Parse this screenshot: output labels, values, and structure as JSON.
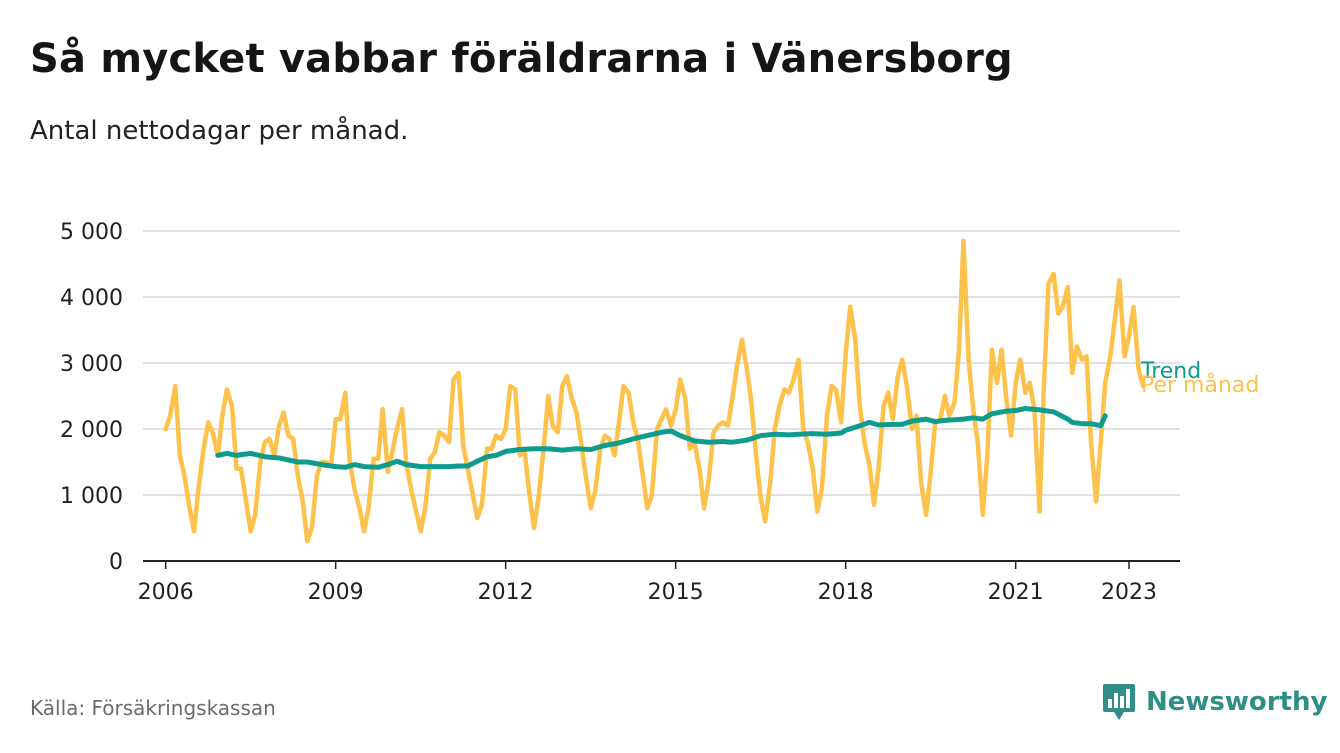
{
  "title": "Så mycket vabbar föräldrarna i Vänersborg",
  "subtitle": "Antal nettodagar per månad.",
  "source": "Källa: Försäkringskassan",
  "brand": {
    "name": "Newsworthy",
    "icon": "bar-chart-badge-icon",
    "color": "#2f8f87"
  },
  "chart_data": {
    "type": "line",
    "ylim": [
      0,
      5000
    ],
    "xlim": [
      2005.6,
      2023.9
    ],
    "y_ticks": [
      {
        "value": 0,
        "label": "0"
      },
      {
        "value": 1000,
        "label": "1 000"
      },
      {
        "value": 2000,
        "label": "2 000"
      },
      {
        "value": 3000,
        "label": "3 000"
      },
      {
        "value": 4000,
        "label": "4 000"
      },
      {
        "value": 5000,
        "label": "5 000"
      }
    ],
    "x_ticks": [
      {
        "value": 2006,
        "label": "2006"
      },
      {
        "value": 2009,
        "label": "2009"
      },
      {
        "value": 2012,
        "label": "2012"
      },
      {
        "value": 2015,
        "label": "2015"
      },
      {
        "value": 2018,
        "label": "2018"
      },
      {
        "value": 2021,
        "label": "2021"
      },
      {
        "value": 2023,
        "label": "2023"
      }
    ],
    "grid": true,
    "series": [
      {
        "name": "Per månad",
        "color": "#fcc24c",
        "points": [
          [
            2006.0,
            2000
          ],
          [
            2006.08,
            2200
          ],
          [
            2006.17,
            2650
          ],
          [
            2006.25,
            1600
          ],
          [
            2006.33,
            1300
          ],
          [
            2006.42,
            800
          ],
          [
            2006.5,
            450
          ],
          [
            2006.58,
            1100
          ],
          [
            2006.67,
            1700
          ],
          [
            2006.75,
            2100
          ],
          [
            2006.83,
            1950
          ],
          [
            2006.92,
            1600
          ],
          [
            2007.0,
            2200
          ],
          [
            2007.08,
            2600
          ],
          [
            2007.17,
            2350
          ],
          [
            2007.25,
            1400
          ],
          [
            2007.33,
            1400
          ],
          [
            2007.42,
            900
          ],
          [
            2007.5,
            450
          ],
          [
            2007.58,
            700
          ],
          [
            2007.67,
            1500
          ],
          [
            2007.75,
            1800
          ],
          [
            2007.83,
            1850
          ],
          [
            2007.92,
            1600
          ],
          [
            2008.0,
            2050
          ],
          [
            2008.08,
            2250
          ],
          [
            2008.17,
            1900
          ],
          [
            2008.25,
            1850
          ],
          [
            2008.33,
            1300
          ],
          [
            2008.42,
            900
          ],
          [
            2008.5,
            300
          ],
          [
            2008.58,
            500
          ],
          [
            2008.67,
            1300
          ],
          [
            2008.75,
            1500
          ],
          [
            2008.83,
            1500
          ],
          [
            2008.92,
            1450
          ],
          [
            2009.0,
            2150
          ],
          [
            2009.08,
            2150
          ],
          [
            2009.17,
            2550
          ],
          [
            2009.25,
            1500
          ],
          [
            2009.33,
            1100
          ],
          [
            2009.42,
            800
          ],
          [
            2009.5,
            450
          ],
          [
            2009.58,
            800
          ],
          [
            2009.67,
            1550
          ],
          [
            2009.75,
            1550
          ],
          [
            2009.83,
            2300
          ],
          [
            2009.92,
            1350
          ],
          [
            2010.0,
            1650
          ],
          [
            2010.08,
            2000
          ],
          [
            2010.17,
            2300
          ],
          [
            2010.25,
            1450
          ],
          [
            2010.33,
            1100
          ],
          [
            2010.42,
            750
          ],
          [
            2010.5,
            450
          ],
          [
            2010.58,
            800
          ],
          [
            2010.67,
            1550
          ],
          [
            2010.75,
            1650
          ],
          [
            2010.83,
            1950
          ],
          [
            2010.92,
            1900
          ],
          [
            2011.0,
            1800
          ],
          [
            2011.08,
            2750
          ],
          [
            2011.17,
            2850
          ],
          [
            2011.25,
            1750
          ],
          [
            2011.33,
            1400
          ],
          [
            2011.42,
            1000
          ],
          [
            2011.5,
            650
          ],
          [
            2011.58,
            850
          ],
          [
            2011.67,
            1700
          ],
          [
            2011.75,
            1700
          ],
          [
            2011.83,
            1900
          ],
          [
            2011.92,
            1850
          ],
          [
            2012.0,
            2000
          ],
          [
            2012.08,
            2650
          ],
          [
            2012.17,
            2600
          ],
          [
            2012.25,
            1600
          ],
          [
            2012.33,
            1700
          ],
          [
            2012.42,
            1000
          ],
          [
            2012.5,
            500
          ],
          [
            2012.58,
            950
          ],
          [
            2012.67,
            1700
          ],
          [
            2012.75,
            2500
          ],
          [
            2012.83,
            2050
          ],
          [
            2012.92,
            1950
          ],
          [
            2013.0,
            2650
          ],
          [
            2013.08,
            2800
          ],
          [
            2013.17,
            2450
          ],
          [
            2013.25,
            2250
          ],
          [
            2013.33,
            1800
          ],
          [
            2013.42,
            1250
          ],
          [
            2013.5,
            800
          ],
          [
            2013.58,
            1050
          ],
          [
            2013.67,
            1700
          ],
          [
            2013.75,
            1900
          ],
          [
            2013.83,
            1850
          ],
          [
            2013.92,
            1600
          ],
          [
            2014.0,
            2100
          ],
          [
            2014.08,
            2650
          ],
          [
            2014.17,
            2550
          ],
          [
            2014.25,
            2100
          ],
          [
            2014.33,
            1850
          ],
          [
            2014.42,
            1300
          ],
          [
            2014.5,
            800
          ],
          [
            2014.58,
            1000
          ],
          [
            2014.67,
            2000
          ],
          [
            2014.75,
            2150
          ],
          [
            2014.83,
            2300
          ],
          [
            2014.92,
            2050
          ],
          [
            2015.0,
            2300
          ],
          [
            2015.08,
            2750
          ],
          [
            2015.17,
            2450
          ],
          [
            2015.25,
            1700
          ],
          [
            2015.33,
            1800
          ],
          [
            2015.42,
            1400
          ],
          [
            2015.5,
            800
          ],
          [
            2015.58,
            1200
          ],
          [
            2015.67,
            1950
          ],
          [
            2015.75,
            2050
          ],
          [
            2015.83,
            2100
          ],
          [
            2015.92,
            2050
          ],
          [
            2016.0,
            2450
          ],
          [
            2016.08,
            2950
          ],
          [
            2016.17,
            3350
          ],
          [
            2016.25,
            2950
          ],
          [
            2016.33,
            2450
          ],
          [
            2016.42,
            1600
          ],
          [
            2016.5,
            950
          ],
          [
            2016.58,
            600
          ],
          [
            2016.67,
            1200
          ],
          [
            2016.75,
            2000
          ],
          [
            2016.83,
            2350
          ],
          [
            2016.92,
            2600
          ],
          [
            2017.0,
            2550
          ],
          [
            2017.08,
            2750
          ],
          [
            2017.17,
            3050
          ],
          [
            2017.25,
            2000
          ],
          [
            2017.33,
            1800
          ],
          [
            2017.42,
            1400
          ],
          [
            2017.5,
            750
          ],
          [
            2017.58,
            1100
          ],
          [
            2017.67,
            2200
          ],
          [
            2017.75,
            2650
          ],
          [
            2017.83,
            2600
          ],
          [
            2017.92,
            2100
          ],
          [
            2018.0,
            3150
          ],
          [
            2018.08,
            3850
          ],
          [
            2018.17,
            3350
          ],
          [
            2018.25,
            2350
          ],
          [
            2018.33,
            1800
          ],
          [
            2018.42,
            1450
          ],
          [
            2018.5,
            850
          ],
          [
            2018.58,
            1400
          ],
          [
            2018.67,
            2350
          ],
          [
            2018.75,
            2550
          ],
          [
            2018.83,
            2150
          ],
          [
            2018.92,
            2800
          ],
          [
            2019.0,
            3050
          ],
          [
            2019.08,
            2650
          ],
          [
            2019.17,
            2000
          ],
          [
            2019.25,
            2200
          ],
          [
            2019.33,
            1200
          ],
          [
            2019.42,
            700
          ],
          [
            2019.5,
            1350
          ],
          [
            2019.58,
            2100
          ],
          [
            2019.67,
            2150
          ],
          [
            2019.75,
            2500
          ],
          [
            2019.83,
            2200
          ],
          [
            2019.92,
            2400
          ],
          [
            2020.0,
            3200
          ],
          [
            2020.08,
            4850
          ],
          [
            2020.17,
            3050
          ],
          [
            2020.25,
            2300
          ],
          [
            2020.33,
            1800
          ],
          [
            2020.42,
            700
          ],
          [
            2020.5,
            1600
          ],
          [
            2020.58,
            3200
          ],
          [
            2020.67,
            2700
          ],
          [
            2020.75,
            3200
          ],
          [
            2020.83,
            2500
          ],
          [
            2020.92,
            1900
          ],
          [
            2021.0,
            2700
          ],
          [
            2021.08,
            3050
          ],
          [
            2021.17,
            2550
          ],
          [
            2021.25,
            2700
          ],
          [
            2021.33,
            2300
          ],
          [
            2021.42,
            750
          ],
          [
            2021.5,
            2700
          ],
          [
            2021.58,
            4200
          ],
          [
            2021.67,
            4350
          ],
          [
            2021.75,
            3750
          ],
          [
            2021.83,
            3850
          ],
          [
            2021.92,
            4150
          ],
          [
            2022.0,
            2850
          ],
          [
            2022.08,
            3250
          ],
          [
            2022.17,
            3050
          ],
          [
            2022.25,
            3100
          ],
          [
            2022.33,
            1800
          ],
          [
            2022.42,
            900
          ],
          [
            2022.5,
            1800
          ],
          [
            2022.58,
            2700
          ],
          [
            2022.67,
            3100
          ],
          [
            2022.75,
            3650
          ],
          [
            2022.83,
            4250
          ],
          [
            2022.92,
            3100
          ],
          [
            2023.0,
            3400
          ],
          [
            2023.08,
            3850
          ],
          [
            2023.17,
            2900
          ],
          [
            2023.25,
            2650
          ]
        ]
      },
      {
        "name": "Trend",
        "color": "#0f9b8e",
        "points": [
          [
            2006.92,
            1600
          ],
          [
            2007.08,
            1630
          ],
          [
            2007.25,
            1600
          ],
          [
            2007.5,
            1630
          ],
          [
            2007.75,
            1580
          ],
          [
            2008.0,
            1560
          ],
          [
            2008.17,
            1530
          ],
          [
            2008.33,
            1500
          ],
          [
            2008.5,
            1500
          ],
          [
            2008.75,
            1460
          ],
          [
            2009.0,
            1430
          ],
          [
            2009.17,
            1420
          ],
          [
            2009.33,
            1460
          ],
          [
            2009.5,
            1430
          ],
          [
            2009.75,
            1420
          ],
          [
            2009.92,
            1460
          ],
          [
            2010.08,
            1510
          ],
          [
            2010.25,
            1460
          ],
          [
            2010.5,
            1430
          ],
          [
            2010.75,
            1430
          ],
          [
            2011.0,
            1430
          ],
          [
            2011.17,
            1440
          ],
          [
            2011.33,
            1440
          ],
          [
            2011.5,
            1510
          ],
          [
            2011.67,
            1580
          ],
          [
            2011.83,
            1600
          ],
          [
            2012.0,
            1660
          ],
          [
            2012.25,
            1690
          ],
          [
            2012.5,
            1700
          ],
          [
            2012.75,
            1700
          ],
          [
            2013.0,
            1680
          ],
          [
            2013.25,
            1700
          ],
          [
            2013.5,
            1690
          ],
          [
            2013.75,
            1750
          ],
          [
            2014.0,
            1790
          ],
          [
            2014.25,
            1850
          ],
          [
            2014.5,
            1900
          ],
          [
            2014.75,
            1950
          ],
          [
            2014.92,
            1970
          ],
          [
            2015.08,
            1900
          ],
          [
            2015.33,
            1820
          ],
          [
            2015.58,
            1800
          ],
          [
            2015.83,
            1810
          ],
          [
            2016.0,
            1800
          ],
          [
            2016.25,
            1830
          ],
          [
            2016.5,
            1900
          ],
          [
            2016.75,
            1920
          ],
          [
            2017.0,
            1910
          ],
          [
            2017.17,
            1920
          ],
          [
            2017.42,
            1930
          ],
          [
            2017.67,
            1920
          ],
          [
            2017.92,
            1940
          ],
          [
            2018.0,
            1980
          ],
          [
            2018.25,
            2050
          ],
          [
            2018.42,
            2100
          ],
          [
            2018.58,
            2060
          ],
          [
            2018.83,
            2070
          ],
          [
            2019.0,
            2070
          ],
          [
            2019.17,
            2120
          ],
          [
            2019.42,
            2150
          ],
          [
            2019.58,
            2110
          ],
          [
            2019.75,
            2130
          ],
          [
            2019.92,
            2140
          ],
          [
            2020.08,
            2150
          ],
          [
            2020.25,
            2170
          ],
          [
            2020.42,
            2150
          ],
          [
            2020.58,
            2230
          ],
          [
            2020.83,
            2270
          ],
          [
            2021.0,
            2280
          ],
          [
            2021.17,
            2310
          ],
          [
            2021.42,
            2290
          ],
          [
            2021.67,
            2260
          ],
          [
            2021.92,
            2150
          ],
          [
            2022.0,
            2100
          ],
          [
            2022.17,
            2080
          ],
          [
            2022.33,
            2080
          ],
          [
            2022.5,
            2050
          ],
          [
            2022.58,
            2200
          ]
        ]
      }
    ],
    "series_labels": [
      "Trend",
      "Per månad"
    ]
  }
}
